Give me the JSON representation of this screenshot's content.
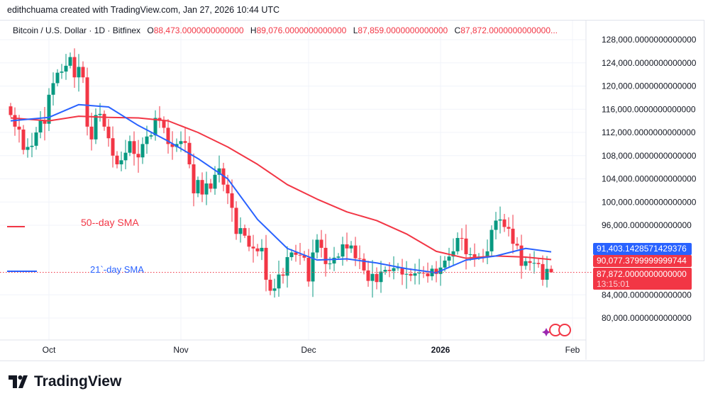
{
  "credit": "edithchuama created with TradingView.com, Jan 27, 2026 10:44 UTC",
  "legend": {
    "symbol": "Bitcoin / U.S. Dollar · 1D · Bitfinex",
    "o_label": "O",
    "o": "88,473.0000000000000",
    "h_label": "H",
    "h": "89,076.0000000000000",
    "l_label": "L",
    "l": "87,859.0000000000000",
    "c_label": "C",
    "c": "87,872.0000000000000..."
  },
  "colors": {
    "up": "#089981",
    "down": "#f23645",
    "sma21": "#2962ff",
    "sma50": "#f23645",
    "grid": "#f0f3fa"
  },
  "price_axis": {
    "min": 76000,
    "max": 130000,
    "ticks": [
      128000,
      124000,
      120000,
      116000,
      112000,
      108000,
      104000,
      100000,
      96000,
      84000,
      80000
    ],
    "tick_labels": [
      "128,000.0000000000000",
      "124,000.0000000000000",
      "120,000.0000000000000",
      "116,000.0000000000000",
      "112,000.0000000000000",
      "108,000.0000000000000",
      "104,000.0000000000000",
      "100,000.0000000000000",
      "96,000.0000000000000",
      "84,000.0000000000000",
      "80,000.0000000000000"
    ]
  },
  "badges": {
    "sma21": "91,403.1428571429376",
    "sma50": "90,077.3799999999744",
    "last": "87,872.0000000000000",
    "countdown": "13:15:01"
  },
  "time_axis": [
    {
      "label": "Oct",
      "date": "2025-10-01",
      "bold": false
    },
    {
      "label": "Nov",
      "date": "2025-11-01",
      "bold": false
    },
    {
      "label": "Dec",
      "date": "2025-12-01",
      "bold": false
    },
    {
      "label": "2026",
      "date": "2026-01-01",
      "bold": true
    },
    {
      "label": "Feb",
      "date": "2026-02-01",
      "bold": false
    }
  ],
  "annotations": {
    "sma50": "50--day SMA",
    "sma21": "21`-day SMA"
  },
  "chart_data": {
    "type": "candlestick",
    "first_date": "2025-09-22",
    "closes": [
      115000,
      113000,
      112500,
      109000,
      109500,
      109700,
      112000,
      114000,
      113500,
      118500,
      120500,
      122300,
      122500,
      123500,
      125000,
      121500,
      123300,
      121500,
      113000,
      110800,
      115000,
      115200,
      113000,
      111000,
      108000,
      106500,
      107200,
      108500,
      110500,
      108300,
      107700,
      110000,
      111300,
      111500,
      114500,
      114000,
      112800,
      110000,
      109500,
      110000,
      110500,
      110200,
      106500,
      101500,
      103800,
      101300,
      103200,
      102300,
      104700,
      105800,
      103000,
      101500,
      99000,
      94500,
      95500,
      94200,
      92300,
      92000,
      91500,
      92100,
      86600,
      84700,
      85100,
      87500,
      87300,
      90500,
      91300,
      90900,
      90800,
      90400,
      86300,
      91300,
      93500,
      92100,
      89300,
      89400,
      90400,
      90600,
      92700,
      92000,
      92500,
      90300,
      90200,
      88200,
      86400,
      87600,
      86200,
      88000,
      88300,
      88100,
      88600,
      88700,
      87500,
      87600,
      87300,
      87700,
      87800,
      87700,
      87200,
      88500,
      87600,
      88700,
      89900,
      90600,
      91500,
      93800,
      93700,
      91000,
      91000,
      90500,
      90600,
      90500,
      91500,
      95200,
      96800,
      97000,
      95700,
      95400,
      92800,
      92500,
      89000,
      89800,
      89500,
      89500,
      89300,
      86600,
      88473,
      87872
    ],
    "last_candle": {
      "open": 88473,
      "high": 89076,
      "low": 87859,
      "close": 87872
    },
    "sma21": [
      [
        "2025-09-22",
        114000
      ],
      [
        "2025-10-01",
        114600
      ],
      [
        "2025-10-08",
        116800
      ],
      [
        "2025-10-15",
        116400
      ],
      [
        "2025-10-22",
        113200
      ],
      [
        "2025-10-29",
        110500
      ],
      [
        "2025-11-05",
        107500
      ],
      [
        "2025-11-12",
        104000
      ],
      [
        "2025-11-19",
        97000
      ],
      [
        "2025-11-26",
        92000
      ],
      [
        "2025-12-03",
        90000
      ],
      [
        "2025-12-10",
        90200
      ],
      [
        "2025-12-17",
        89500
      ],
      [
        "2025-12-24",
        88500
      ],
      [
        "2025-12-31",
        87800
      ],
      [
        "2026-01-07",
        90000
      ],
      [
        "2026-01-14",
        90700
      ],
      [
        "2026-01-21",
        92000
      ],
      [
        "2026-01-27",
        91403
      ]
    ],
    "sma50": [
      [
        "2025-09-22",
        114500
      ],
      [
        "2025-10-01",
        114000
      ],
      [
        "2025-10-08",
        114800
      ],
      [
        "2025-10-15",
        114600
      ],
      [
        "2025-10-22",
        114500
      ],
      [
        "2025-10-29",
        114000
      ],
      [
        "2025-11-05",
        112000
      ],
      [
        "2025-11-12",
        109500
      ],
      [
        "2025-11-19",
        106500
      ],
      [
        "2025-11-26",
        103000
      ],
      [
        "2025-12-03",
        100500
      ],
      [
        "2025-12-10",
        98300
      ],
      [
        "2025-12-17",
        96800
      ],
      [
        "2025-12-24",
        94500
      ],
      [
        "2025-12-31",
        91500
      ],
      [
        "2026-01-07",
        90300
      ],
      [
        "2026-01-14",
        90700
      ],
      [
        "2026-01-21",
        90500
      ],
      [
        "2026-01-27",
        90077
      ]
    ]
  },
  "footer": {
    "brand": "TradingView"
  }
}
